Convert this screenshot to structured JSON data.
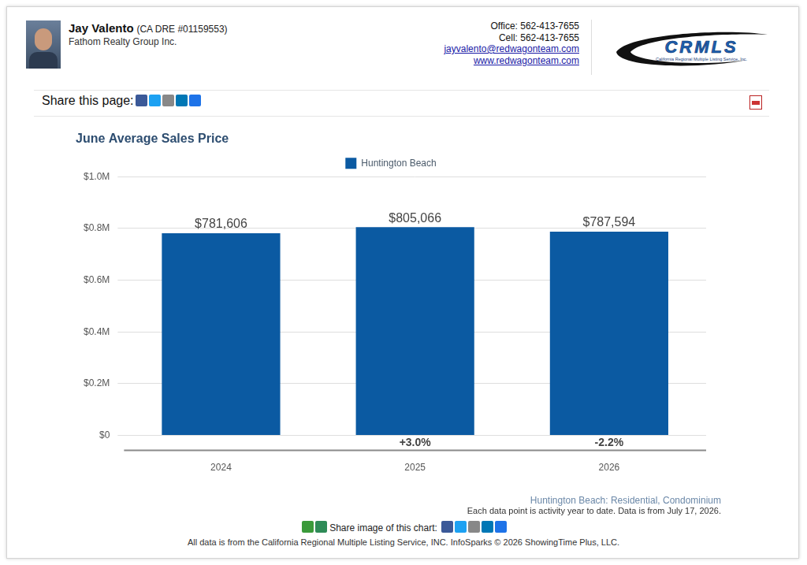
{
  "header": {
    "name": "Jay Valento",
    "license": "(CA DRE #01159553)",
    "company": "Fathom Realty Group Inc.",
    "office": "Office: 562-413-7655",
    "cell": "Cell: 562-413-7655",
    "email": "jayvalento@redwagonteam.com",
    "website": "www.redwagonteam.com",
    "logo": "CRMLS",
    "logo_subtitle": "California Regional Multiple Listing Service, Inc."
  },
  "share_page": "Share this page:",
  "chart_data": {
    "type": "bar",
    "title": "June Average Sales Price",
    "categories": [
      "2024",
      "2025",
      "2026"
    ],
    "series": [
      {
        "name": "Huntington Beach",
        "color": "#0b5aa2",
        "values": [
          781606,
          805066,
          787594
        ]
      }
    ],
    "value_labels": [
      "$781,606",
      "$805,066",
      "$787,594"
    ],
    "data_labels": true,
    "ylim": [
      0,
      1000000
    ],
    "yticks": [
      {
        "value": 0,
        "label": "$0"
      },
      {
        "value": 200000,
        "label": "$0.2M"
      },
      {
        "value": 400000,
        "label": "$0.4M"
      },
      {
        "value": 600000,
        "label": "$0.6M"
      },
      {
        "value": 800000,
        "label": "$0.8M"
      },
      {
        "value": 1000000,
        "label": "$1.0M"
      }
    ],
    "grid": true,
    "legend": "top",
    "annotations": [
      {
        "category": "2025",
        "value": 3.0,
        "label": "+3.0%"
      },
      {
        "category": "2026",
        "value": -2.2,
        "label": "-2.2%"
      }
    ]
  },
  "footer": {
    "region": "Huntington Beach: Residential, Condominium",
    "note": "Each data point is activity year to date. Data is from July 17, 2026.",
    "share_image": "Share image of this chart:",
    "source": "All data is from the California Regional Multiple Listing Service, INC. InfoSparks © 2026 ShowingTime Plus, LLC."
  }
}
